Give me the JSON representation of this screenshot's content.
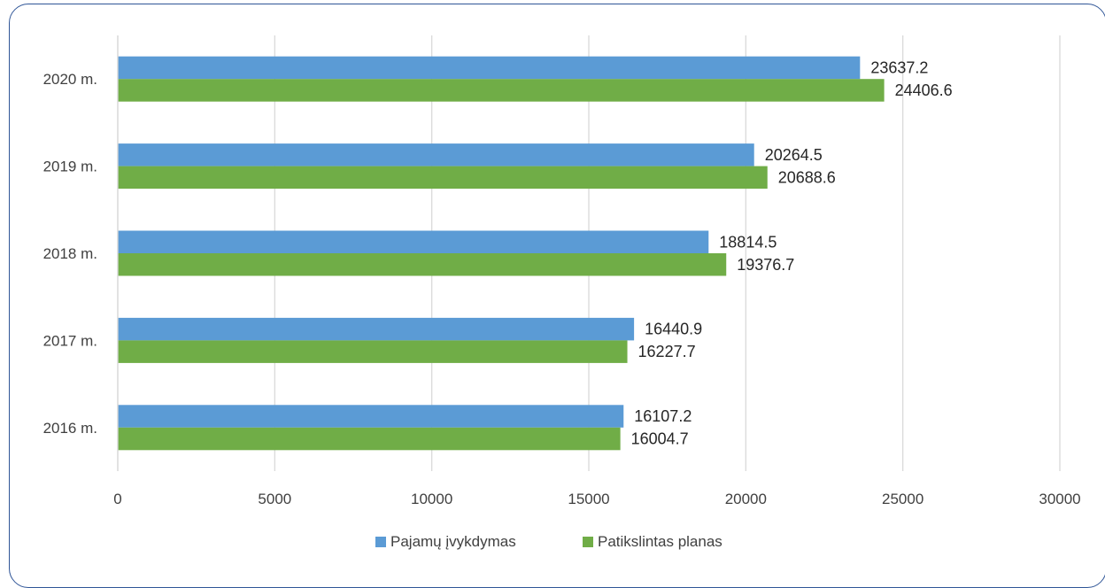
{
  "chart_data": {
    "type": "bar",
    "orientation": "horizontal",
    "categories": [
      "2016 m.",
      "2017 m.",
      "2018 m.",
      "2019 m.",
      "2020 m."
    ],
    "series": [
      {
        "name": "Pajamų įvykdymas",
        "color": "#5b9bd5",
        "values": [
          16107.2,
          16440.9,
          18814.5,
          20264.5,
          23637.2
        ]
      },
      {
        "name": "Patikslintas planas",
        "color": "#70ad47",
        "values": [
          16004.7,
          16227.7,
          19376.7,
          20688.6,
          24406.6
        ]
      }
    ],
    "x_ticks": [
      "0",
      "5000",
      "10000",
      "15000",
      "20000",
      "25000",
      "30000"
    ],
    "xlim": [
      0,
      30000
    ],
    "grid": true,
    "legend": "bottom",
    "data_labels": true
  }
}
